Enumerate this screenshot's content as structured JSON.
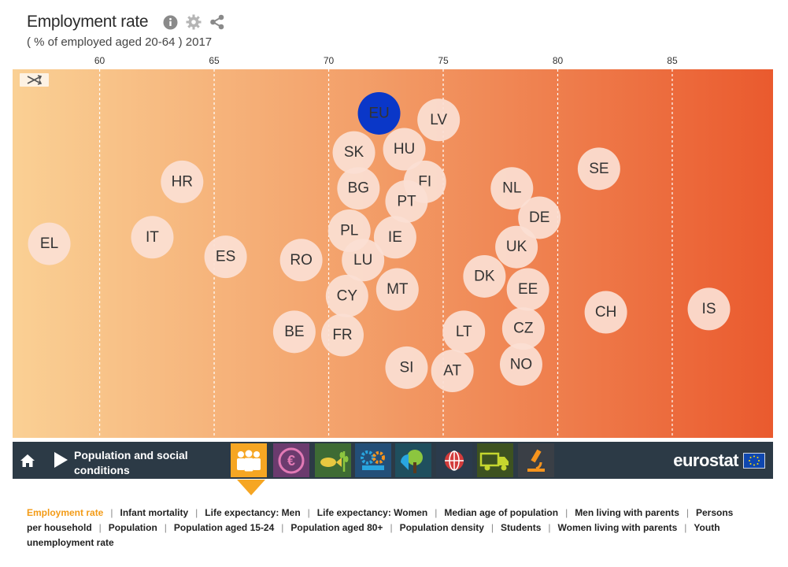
{
  "header": {
    "title": "Employment rate",
    "subtitle": "( % of employed aged 20-64 ) 2017"
  },
  "icons": {
    "info": "info-icon",
    "settings": "gear-icon",
    "share": "share-icon",
    "shuffle": "shuffle-icon"
  },
  "colors": {
    "gradient_start": "#fad094",
    "gradient_end": "#ea5a2e",
    "bubble": "#fbe0d4",
    "eu_bubble": "#0a37c8",
    "accent": "#f6a623",
    "nav_bg": "#2c3a46"
  },
  "chart_data": {
    "type": "scatter",
    "title": "Employment rate",
    "subtitle": "( % of employed aged 20-64 ) 2017",
    "x_ticks": [
      60,
      65,
      70,
      75,
      80,
      85
    ],
    "xlim": [
      56.2,
      89.4
    ],
    "grid": "vertical dashed",
    "points": [
      {
        "label": "EU",
        "value": 72.2,
        "row": 0.07,
        "highlight": true
      },
      {
        "label": "LV",
        "value": 74.8,
        "row": 0.09
      },
      {
        "label": "SK",
        "value": 71.1,
        "row": 0.19
      },
      {
        "label": "HU",
        "value": 73.3,
        "row": 0.18
      },
      {
        "label": "SE",
        "value": 81.8,
        "row": 0.24
      },
      {
        "label": "HR",
        "value": 63.6,
        "row": 0.28
      },
      {
        "label": "FI",
        "value": 74.2,
        "row": 0.28
      },
      {
        "label": "BG",
        "value": 71.3,
        "row": 0.3
      },
      {
        "label": "NL",
        "value": 78.0,
        "row": 0.3
      },
      {
        "label": "PT",
        "value": 73.4,
        "row": 0.34
      },
      {
        "label": "DE",
        "value": 79.2,
        "row": 0.39
      },
      {
        "label": "PL",
        "value": 70.9,
        "row": 0.43
      },
      {
        "label": "IT",
        "value": 62.3,
        "row": 0.45
      },
      {
        "label": "IE",
        "value": 72.9,
        "row": 0.45
      },
      {
        "label": "EL",
        "value": 57.8,
        "row": 0.47
      },
      {
        "label": "UK",
        "value": 78.2,
        "row": 0.48
      },
      {
        "label": "ES",
        "value": 65.5,
        "row": 0.51
      },
      {
        "label": "LU",
        "value": 71.5,
        "row": 0.52
      },
      {
        "label": "RO",
        "value": 68.8,
        "row": 0.52
      },
      {
        "label": "DK",
        "value": 76.8,
        "row": 0.57
      },
      {
        "label": "MT",
        "value": 73.0,
        "row": 0.61
      },
      {
        "label": "EE",
        "value": 78.7,
        "row": 0.61
      },
      {
        "label": "CY",
        "value": 70.8,
        "row": 0.63
      },
      {
        "label": "IS",
        "value": 86.6,
        "row": 0.67
      },
      {
        "label": "CH",
        "value": 82.1,
        "row": 0.68
      },
      {
        "label": "CZ",
        "value": 78.5,
        "row": 0.73
      },
      {
        "label": "LT",
        "value": 75.9,
        "row": 0.74
      },
      {
        "label": "BE",
        "value": 68.5,
        "row": 0.74
      },
      {
        "label": "FR",
        "value": 70.6,
        "row": 0.75
      },
      {
        "label": "SI",
        "value": 73.4,
        "row": 0.85
      },
      {
        "label": "NO",
        "value": 78.4,
        "row": 0.84
      },
      {
        "label": "AT",
        "value": 75.4,
        "row": 0.86
      }
    ]
  },
  "navbar": {
    "home_icon": "home-icon",
    "play_icon": "play-icon",
    "theme_label_line1": "Population and social",
    "theme_label_line2": "conditions",
    "themes": [
      {
        "name": "population-theme",
        "icon": "people-icon",
        "active": true
      },
      {
        "name": "economy-theme",
        "icon": "euro-icon"
      },
      {
        "name": "agriculture-theme",
        "icon": "fish-wheat-icon"
      },
      {
        "name": "industry-theme",
        "icon": "gears-icon"
      },
      {
        "name": "environment-theme",
        "icon": "tree-icon"
      },
      {
        "name": "international-theme",
        "icon": "globe-icon"
      },
      {
        "name": "transport-theme",
        "icon": "truck-icon"
      },
      {
        "name": "science-theme",
        "icon": "microscope-icon"
      }
    ],
    "brand": "eurostat"
  },
  "indicators": [
    {
      "label": "Employment rate",
      "active": true
    },
    {
      "label": "Infant mortality"
    },
    {
      "label": "Life expectancy: Men"
    },
    {
      "label": "Life expectancy: Women"
    },
    {
      "label": "Median age of population"
    },
    {
      "label": "Men living with parents"
    },
    {
      "label": "Persons per household"
    },
    {
      "label": "Population"
    },
    {
      "label": "Population aged 15-24"
    },
    {
      "label": "Population aged 80+"
    },
    {
      "label": "Population density"
    },
    {
      "label": "Students"
    },
    {
      "label": "Women living with parents"
    },
    {
      "label": "Youth unemployment rate"
    }
  ]
}
